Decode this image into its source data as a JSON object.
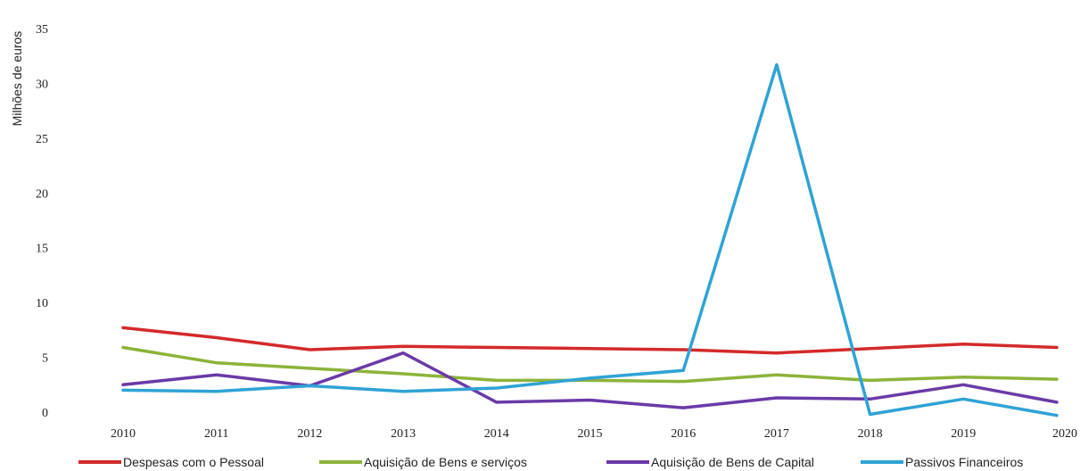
{
  "chart_data": {
    "type": "line",
    "title": "",
    "xlabel": "",
    "ylabel": "Milhões de euros",
    "ylim": [
      0,
      35
    ],
    "yticks": [
      0,
      5,
      10,
      15,
      20,
      25,
      30,
      35
    ],
    "grid": false,
    "legend_position": "bottom",
    "x": [
      "2010",
      "2011",
      "2012",
      "2013",
      "2014",
      "2015",
      "2016",
      "2017",
      "2018",
      "2019",
      "2020"
    ],
    "series": [
      {
        "name": "Despesas com o Pessoal",
        "color": "#d42a2a",
        "values": [
          7.7,
          6.8,
          5.7,
          6.0,
          5.9,
          5.8,
          5.7,
          5.4,
          5.8,
          6.2,
          5.9
        ]
      },
      {
        "name": "Aquisição de Bens e serviços",
        "color": "#8db33a",
        "values": [
          5.9,
          4.5,
          4.0,
          3.5,
          2.9,
          2.9,
          2.8,
          3.4,
          2.9,
          3.2,
          3.0
        ]
      },
      {
        "name": "Aquisição de Bens de Capital",
        "color": "#6a3aa8",
        "values": [
          2.5,
          3.4,
          2.4,
          5.4,
          0.9,
          1.1,
          0.4,
          1.3,
          1.2,
          2.5,
          0.9
        ]
      },
      {
        "name": "Passivos Financeiros",
        "color": "#2fa3d6",
        "values": [
          2.0,
          1.9,
          2.4,
          1.9,
          2.2,
          3.1,
          3.8,
          31.7,
          -0.2,
          1.2,
          -0.3
        ]
      }
    ]
  }
}
